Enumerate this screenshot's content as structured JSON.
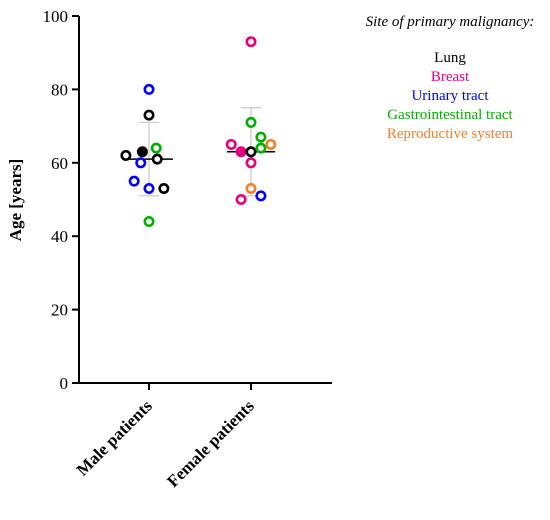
{
  "chart_data": {
    "type": "scatter",
    "ylabel": "Age [years]",
    "ylim": [
      0,
      100
    ],
    "yticks": [
      0,
      20,
      40,
      60,
      80,
      100
    ],
    "categories": [
      "Male patients",
      "Female patients"
    ],
    "legend": {
      "title": "Site of primary malignancy:",
      "placement": "top-right",
      "entries": [
        {
          "label": "Lung",
          "color": "#000000"
        },
        {
          "label": "Breast",
          "color": "#e6007e"
        },
        {
          "label": "Urinary tract",
          "color": "#0000ff"
        },
        {
          "label": "Gastrointestinal tract",
          "color": "#00b000"
        },
        {
          "label": "Reproductive system",
          "color": "#f07f2a"
        }
      ]
    },
    "summary": [
      {
        "category": "Male patients",
        "mean": 61,
        "sd_low": 51,
        "sd_high": 71
      },
      {
        "category": "Female patients",
        "mean": 63,
        "sd_low": 51,
        "sd_high": 75
      }
    ],
    "points": [
      {
        "category": "Male patients",
        "site": "Lung",
        "age": 62,
        "offset": -0.7,
        "filled": false
      },
      {
        "category": "Male patients",
        "site": "Lung",
        "age": 63,
        "offset": -0.2,
        "filled": true
      },
      {
        "category": "Male patients",
        "site": "Lung",
        "age": 73,
        "offset": 0.0,
        "filled": false
      },
      {
        "category": "Male patients",
        "site": "Lung",
        "age": 61,
        "offset": 0.25,
        "filled": false
      },
      {
        "category": "Male patients",
        "site": "Lung",
        "age": 53,
        "offset": 0.45,
        "filled": false
      },
      {
        "category": "Male patients",
        "site": "Urinary tract",
        "age": 80,
        "offset": 0.0,
        "filled": false
      },
      {
        "category": "Male patients",
        "site": "Urinary tract",
        "age": 60,
        "offset": -0.25,
        "filled": false
      },
      {
        "category": "Male patients",
        "site": "Urinary tract",
        "age": 55,
        "offset": -0.45,
        "filled": false
      },
      {
        "category": "Male patients",
        "site": "Urinary tract",
        "age": 53,
        "offset": 0.0,
        "filled": false
      },
      {
        "category": "Male patients",
        "site": "Gastrointestinal tract",
        "age": 64,
        "offset": 0.22,
        "filled": false
      },
      {
        "category": "Male patients",
        "site": "Gastrointestinal tract",
        "age": 44,
        "offset": 0.0,
        "filled": false
      },
      {
        "category": "Female patients",
        "site": "Breast",
        "age": 93,
        "offset": 0.0,
        "filled": false
      },
      {
        "category": "Female patients",
        "site": "Breast",
        "age": 65,
        "offset": -0.6,
        "filled": false
      },
      {
        "category": "Female patients",
        "site": "Breast",
        "age": 63,
        "offset": -0.3,
        "filled": true
      },
      {
        "category": "Female patients",
        "site": "Breast",
        "age": 60,
        "offset": 0.0,
        "filled": false
      },
      {
        "category": "Female patients",
        "site": "Breast",
        "age": 50,
        "offset": -0.3,
        "filled": false
      },
      {
        "category": "Female patients",
        "site": "Lung",
        "age": 63,
        "offset": 0.0,
        "filled": false
      },
      {
        "category": "Female patients",
        "site": "Gastrointestinal tract",
        "age": 71,
        "offset": 0.0,
        "filled": false
      },
      {
        "category": "Female patients",
        "site": "Gastrointestinal tract",
        "age": 67,
        "offset": 0.3,
        "filled": false
      },
      {
        "category": "Female patients",
        "site": "Gastrointestinal tract",
        "age": 64,
        "offset": 0.3,
        "filled": false
      },
      {
        "category": "Female patients",
        "site": "Urinary tract",
        "age": 51,
        "offset": 0.3,
        "filled": false
      },
      {
        "category": "Female patients",
        "site": "Reproductive system",
        "age": 65,
        "offset": 0.6,
        "filled": false
      },
      {
        "category": "Female patients",
        "site": "Reproductive system",
        "age": 53,
        "offset": 0.0,
        "filled": false
      }
    ]
  }
}
